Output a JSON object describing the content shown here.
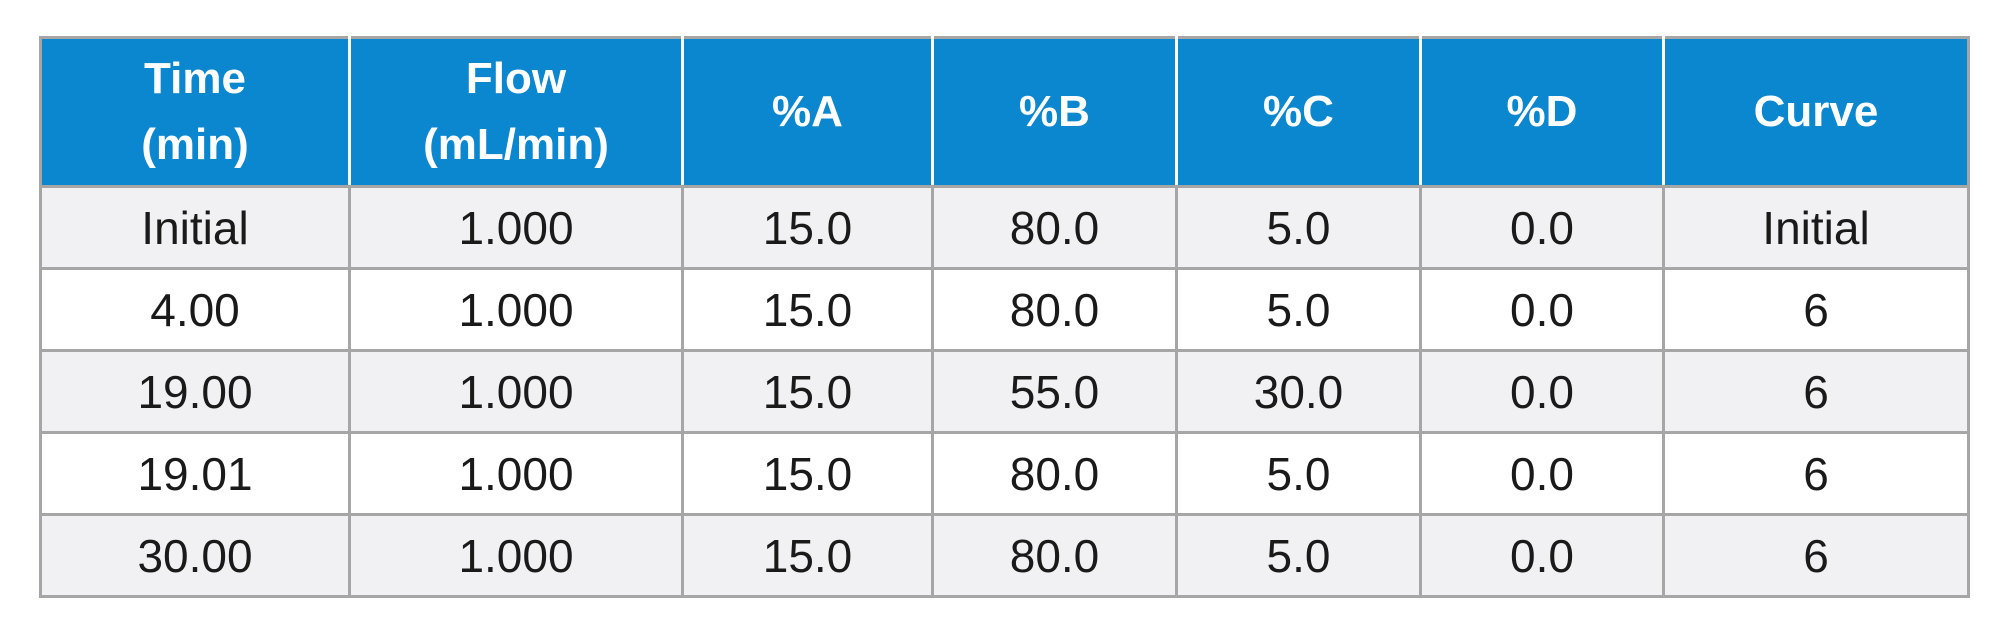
{
  "table": {
    "headers": [
      "Time\n(min)",
      "Flow\n(mL/min)",
      "%A",
      "%B",
      "%C",
      "%D",
      "Curve"
    ],
    "rows": [
      [
        "Initial",
        "1.000",
        "15.0",
        "80.0",
        "5.0",
        "0.0",
        "Initial"
      ],
      [
        "4.00",
        "1.000",
        "15.0",
        "80.0",
        "5.0",
        "0.0",
        "6"
      ],
      [
        "19.00",
        "1.000",
        "15.0",
        "55.0",
        "30.0",
        "0.0",
        "6"
      ],
      [
        "19.01",
        "1.000",
        "15.0",
        "80.0",
        "5.0",
        "0.0",
        "6"
      ],
      [
        "30.00",
        "1.000",
        "15.0",
        "80.0",
        "5.0",
        "0.0",
        "6"
      ]
    ]
  },
  "colors": {
    "header_background": "#0a87cf",
    "header_text": "#ffffff",
    "row_shaded": "#f1f1f3",
    "row_plain": "#ffffff",
    "grid_lines": "#a6a6a6"
  }
}
